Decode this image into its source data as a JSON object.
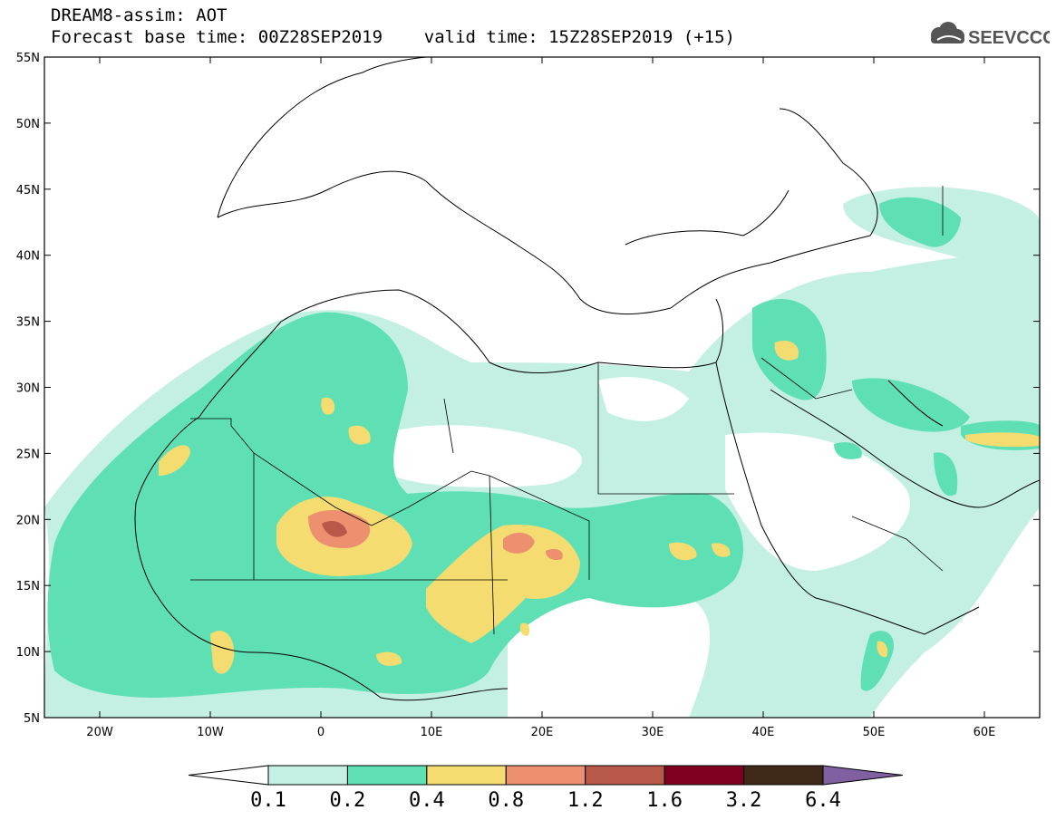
{
  "header": {
    "title_line1": "DREAM8-assim: AOT",
    "title_line2": "Forecast base time: 00Z28SEP2019    valid time: 15Z28SEP2019 (+15)",
    "logo_text": "SEEVCCC",
    "logo_icon": "cloud-icon"
  },
  "map": {
    "lat_labels": [
      "55N",
      "50N",
      "45N",
      "40N",
      "35N",
      "30N",
      "25N",
      "20N",
      "15N",
      "10N",
      "5N"
    ],
    "lon_labels": [
      "20W",
      "10W",
      "0",
      "10E",
      "20E",
      "30E",
      "40E",
      "50E",
      "60E"
    ],
    "extent": {
      "lon": [
        -25,
        65
      ],
      "lat": [
        5,
        55
      ]
    }
  },
  "colorbar": {
    "labels": [
      "0.1",
      "0.2",
      "0.4",
      "0.8",
      "1.2",
      "1.6",
      "3.2",
      "6.4"
    ],
    "colors": [
      "#ffffff",
      "#c4f0e4",
      "#5fe0b4",
      "#f5dc70",
      "#ec9070",
      "#b85848",
      "#800020",
      "#402818",
      "#8060a0"
    ]
  }
}
